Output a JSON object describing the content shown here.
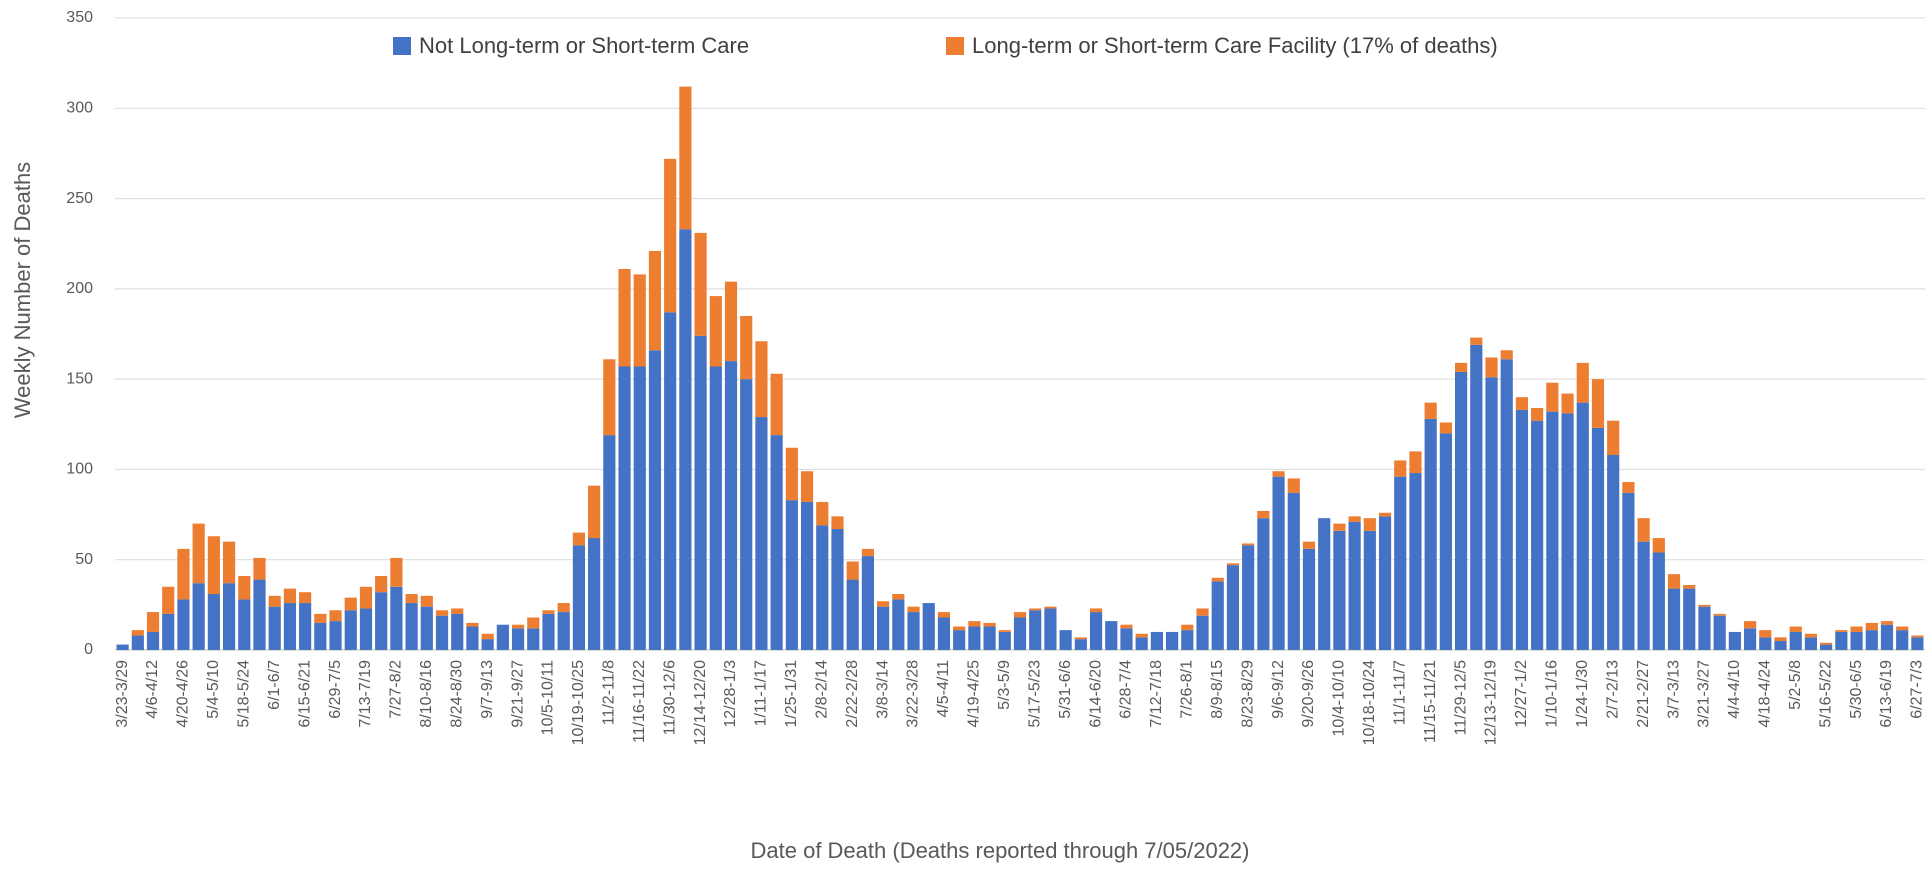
{
  "chart_data": {
    "type": "stacked_bar",
    "y_label": "Weekly Number of Deaths",
    "x_label": "Date of Death (Deaths reported through 7/05/2022)",
    "categories": [
      "3/23-3/29",
      null,
      "4/6-4/12",
      null,
      "4/20-4/26",
      null,
      "5/4-5/10",
      null,
      "5/18-5/24",
      null,
      "6/1-6/7",
      null,
      "6/15-6/21",
      null,
      "6/29-7/5",
      null,
      "7/13-7/19",
      null,
      "7/27-8/2",
      null,
      "8/10-8/16",
      null,
      "8/24-8/30",
      null,
      "9/7-9/13",
      null,
      "9/21-9/27",
      null,
      "10/5-10/11",
      null,
      "10/19-10/25",
      null,
      "11/2-11/8",
      null,
      "11/16-11/22",
      null,
      "11/30-12/6",
      null,
      "12/14-12/20",
      null,
      "12/28-1/3",
      null,
      "1/11-1/17",
      null,
      "1/25-1/31",
      null,
      "2/8-2/14",
      null,
      "2/22-2/28",
      null,
      "3/8-3/14",
      null,
      "3/22-3/28",
      null,
      "4/5-4/11",
      null,
      "4/19-4/25",
      null,
      "5/3-5/9",
      null,
      "5/17-5/23",
      null,
      "5/31-6/6",
      null,
      "6/14-6/20",
      null,
      "6/28-7/4",
      null,
      "7/12-7/18",
      null,
      "7/26-8/1",
      null,
      "8/9-8/15",
      null,
      "8/23-8/29",
      null,
      "9/6-9/12",
      null,
      "9/20-9/26",
      null,
      "10/4-10/10",
      null,
      "10/18-10/24",
      null,
      "11/1-11/7",
      null,
      "11/15-11/21",
      null,
      "11/29-12/5",
      null,
      "12/13-12/19",
      null,
      "12/27-1/2",
      null,
      "1/10-1/16",
      null,
      "1/24-1/30",
      null,
      "2/7-2/13",
      null,
      "2/21-2/27",
      null,
      "3/7-3/13",
      null,
      "3/21-3/27",
      null,
      "4/4-4/10",
      null,
      "4/18-4/24",
      null,
      "5/2-5/8",
      null,
      "5/16-5/22",
      null,
      "5/30-6/5",
      null,
      "6/13-6/19",
      null,
      "6/27-7/3"
    ],
    "series": [
      {
        "name": "Not Long-term or Short-term Care",
        "color": "#4472c4",
        "values": [
          3,
          8,
          10,
          20,
          28,
          37,
          31,
          37,
          28,
          39,
          24,
          26,
          26,
          15,
          16,
          22,
          23,
          32,
          35,
          26,
          24,
          19,
          20,
          13,
          6,
          14,
          12,
          12,
          20,
          21,
          58,
          62,
          119,
          157,
          157,
          166,
          187,
          233,
          174,
          157,
          160,
          150,
          129,
          119,
          83,
          82,
          69,
          67,
          39,
          52,
          24,
          28,
          21,
          26,
          18,
          11,
          13,
          13,
          10,
          18,
          22,
          23,
          11,
          6,
          21,
          16,
          12,
          7,
          10,
          10,
          11,
          19,
          38,
          47,
          58,
          73,
          96,
          87,
          56,
          73,
          66,
          71,
          66,
          74,
          96,
          98,
          128,
          120,
          154,
          169,
          151,
          161,
          133,
          127,
          132,
          131,
          137,
          123,
          108,
          87,
          60,
          54,
          34,
          34,
          24,
          19,
          10,
          12,
          7,
          5,
          10,
          7,
          3,
          10,
          10,
          11,
          14,
          11,
          7
        ]
      },
      {
        "name": "Long-term or Short-term Care Facility (17% of deaths)",
        "color": "#ed7d31",
        "values": [
          0,
          3,
          11,
          15,
          28,
          33,
          32,
          23,
          13,
          12,
          6,
          8,
          6,
          5,
          6,
          7,
          12,
          9,
          16,
          5,
          6,
          3,
          3,
          2,
          3,
          0,
          2,
          6,
          2,
          5,
          7,
          29,
          42,
          54,
          51,
          55,
          85,
          79,
          57,
          39,
          44,
          35,
          42,
          34,
          29,
          17,
          13,
          7,
          10,
          4,
          3,
          3,
          3,
          0,
          3,
          2,
          3,
          2,
          1,
          3,
          1,
          1,
          0,
          1,
          2,
          0,
          2,
          2,
          0,
          0,
          3,
          4,
          2,
          1,
          1,
          4,
          3,
          8,
          4,
          0,
          4,
          3,
          7,
          2,
          9,
          12,
          9,
          6,
          5,
          4,
          11,
          5,
          7,
          7,
          16,
          11,
          22,
          27,
          19,
          6,
          13,
          8,
          8,
          2,
          1,
          1,
          0,
          4,
          4,
          2,
          3,
          2,
          1,
          1,
          3,
          4,
          2,
          2,
          1
        ]
      }
    ],
    "ylim": [
      0,
      350
    ],
    "yticks": [
      0,
      50,
      100,
      150,
      200,
      250,
      300,
      350
    ],
    "grid": true,
    "legend": "top"
  }
}
